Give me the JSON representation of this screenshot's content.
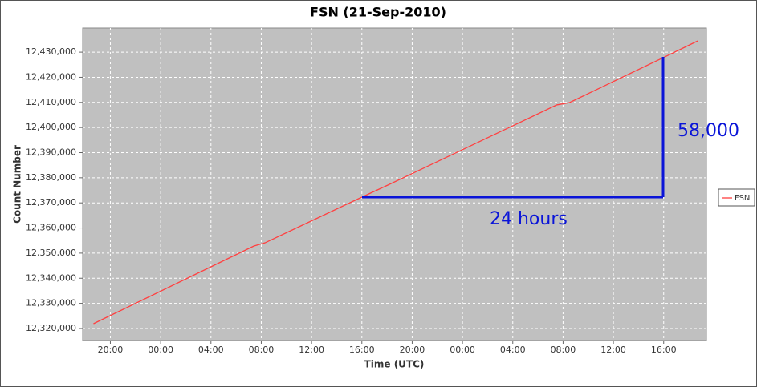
{
  "chart_data": {
    "type": "line",
    "title": "FSN (21-Sep-2010)",
    "x_label": "Time (UTC)",
    "y_label": "Count Number",
    "x": [
      18.66,
      31.4,
      32.3,
      40,
      42.2,
      55.5,
      56.5,
      64,
      66.7
    ],
    "series": [
      {
        "name": "FSN",
        "color": "#ff4040",
        "values": [
          12321900,
          12352800,
          12354100,
          12372300,
          12377400,
          12409000,
          12409900,
          12427900,
          12434460
        ]
      }
    ],
    "xlim": [
      17.8,
      67.4
    ],
    "xticks": [
      {
        "value": 20,
        "label": "20:00"
      },
      {
        "value": 24,
        "label": "00:00"
      },
      {
        "value": 28,
        "label": "04:00"
      },
      {
        "value": 32,
        "label": "08:00"
      },
      {
        "value": 36,
        "label": "12:00"
      },
      {
        "value": 40,
        "label": "16:00"
      },
      {
        "value": 44,
        "label": "20:00"
      },
      {
        "value": 48,
        "label": "00:00"
      },
      {
        "value": 52,
        "label": "04:00"
      },
      {
        "value": 56,
        "label": "08:00"
      },
      {
        "value": 60,
        "label": "12:00"
      },
      {
        "value": 64,
        "label": "16:00"
      }
    ],
    "ylim": [
      12315200,
      12439600
    ],
    "yticks": [
      {
        "value": 12320000,
        "label": "12,320,000"
      },
      {
        "value": 12330000,
        "label": "12,330,000"
      },
      {
        "value": 12340000,
        "label": "12,340,000"
      },
      {
        "value": 12350000,
        "label": "12,350,000"
      },
      {
        "value": 12360000,
        "label": "12,360,000"
      },
      {
        "value": 12370000,
        "label": "12,370,000"
      },
      {
        "value": 12380000,
        "label": "12,380,000"
      },
      {
        "value": 12390000,
        "label": "12,390,000"
      },
      {
        "value": 12400000,
        "label": "12,400,000"
      },
      {
        "value": 12410000,
        "label": "12,410,000"
      },
      {
        "value": 12420000,
        "label": "12,420,000"
      },
      {
        "value": 12430000,
        "label": "12,430,000"
      }
    ],
    "grid": true,
    "legend": "right",
    "annotations": [
      "58,000",
      "24 hours"
    ]
  }
}
